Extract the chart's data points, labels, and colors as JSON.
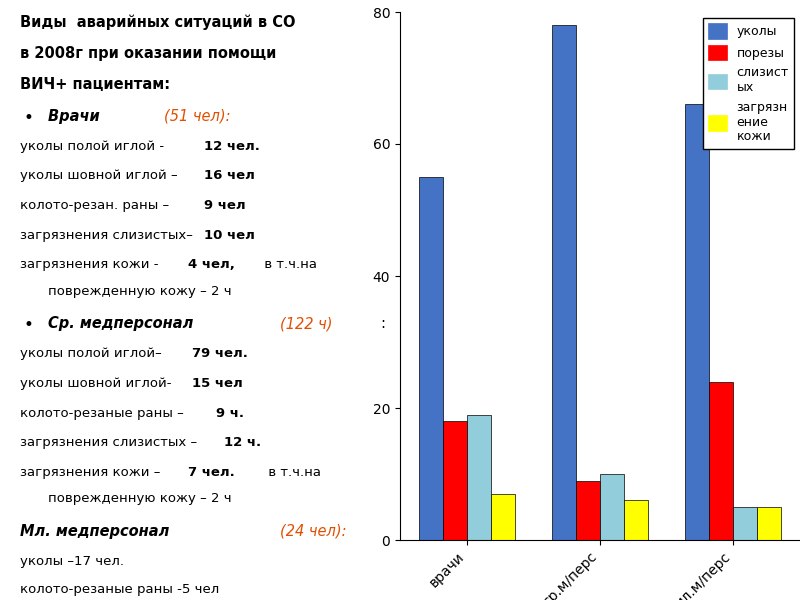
{
  "categories": [
    "врачи",
    "ср.м/перс",
    "мл.м/перс"
  ],
  "series": {
    "уколы": [
      55,
      78,
      66
    ],
    "порезы": [
      18,
      9,
      24
    ],
    "слизистых": [
      19,
      10,
      5
    ],
    "загрязнениекожи": [
      7,
      6,
      5
    ]
  },
  "colors": {
    "уколы": "#4472C4",
    "порезы": "#FF0000",
    "слизистых": "#92CDDC",
    "загрязнениекожи": "#FFFF00"
  },
  "ylim": [
    0,
    80
  ],
  "yticks": [
    0,
    20,
    40,
    60,
    80
  ],
  "legend_labels": [
    "уколы",
    "порезы",
    "слизист\nых",
    "загрязн\nение\nкожи"
  ],
  "bar_width": 0.18,
  "fig_width": 8.0,
  "fig_height": 6.0
}
